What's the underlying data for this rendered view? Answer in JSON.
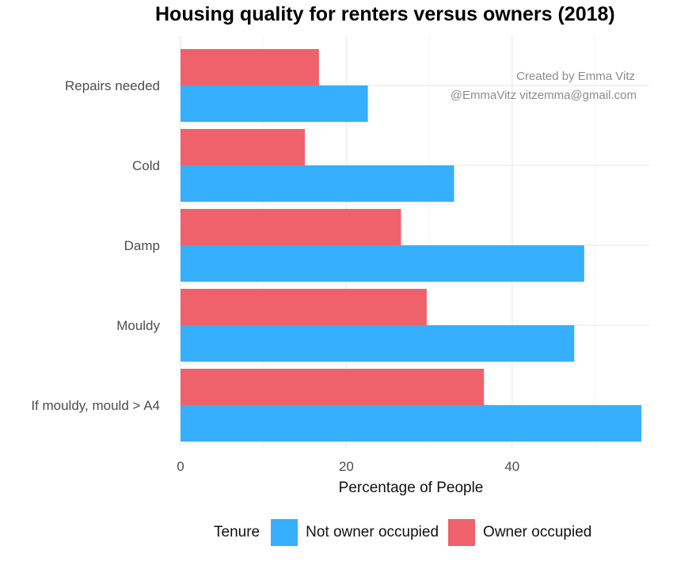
{
  "chart_data": {
    "type": "bar",
    "orientation": "horizontal",
    "title": "Housing quality for renters versus owners (2018)",
    "xlabel": "Percentage of People",
    "ylabel": "",
    "xlim": [
      0,
      56.5
    ],
    "xticks": [
      0,
      20,
      40
    ],
    "grid": true,
    "categories": [
      "Repairs needed",
      "Cold",
      "Damp",
      "Mouldy",
      "If mouldy, mould > A4"
    ],
    "series": [
      {
        "name": "Owner occupied",
        "color": "#EF626C",
        "values": [
          16.7,
          15.0,
          26.6,
          29.7,
          36.6
        ]
      },
      {
        "name": "Not owner occupied",
        "color": "#36AFFF",
        "values": [
          22.6,
          33.0,
          48.7,
          47.5,
          55.6
        ]
      }
    ],
    "legend": {
      "title": "Tenure",
      "position": "bottom",
      "entries": [
        "Not owner occupied",
        "Owner occupied"
      ]
    },
    "annotations": [
      "Created by Emma Vitz",
      "@EmmaVitz vitzemma@gmail.com"
    ]
  }
}
